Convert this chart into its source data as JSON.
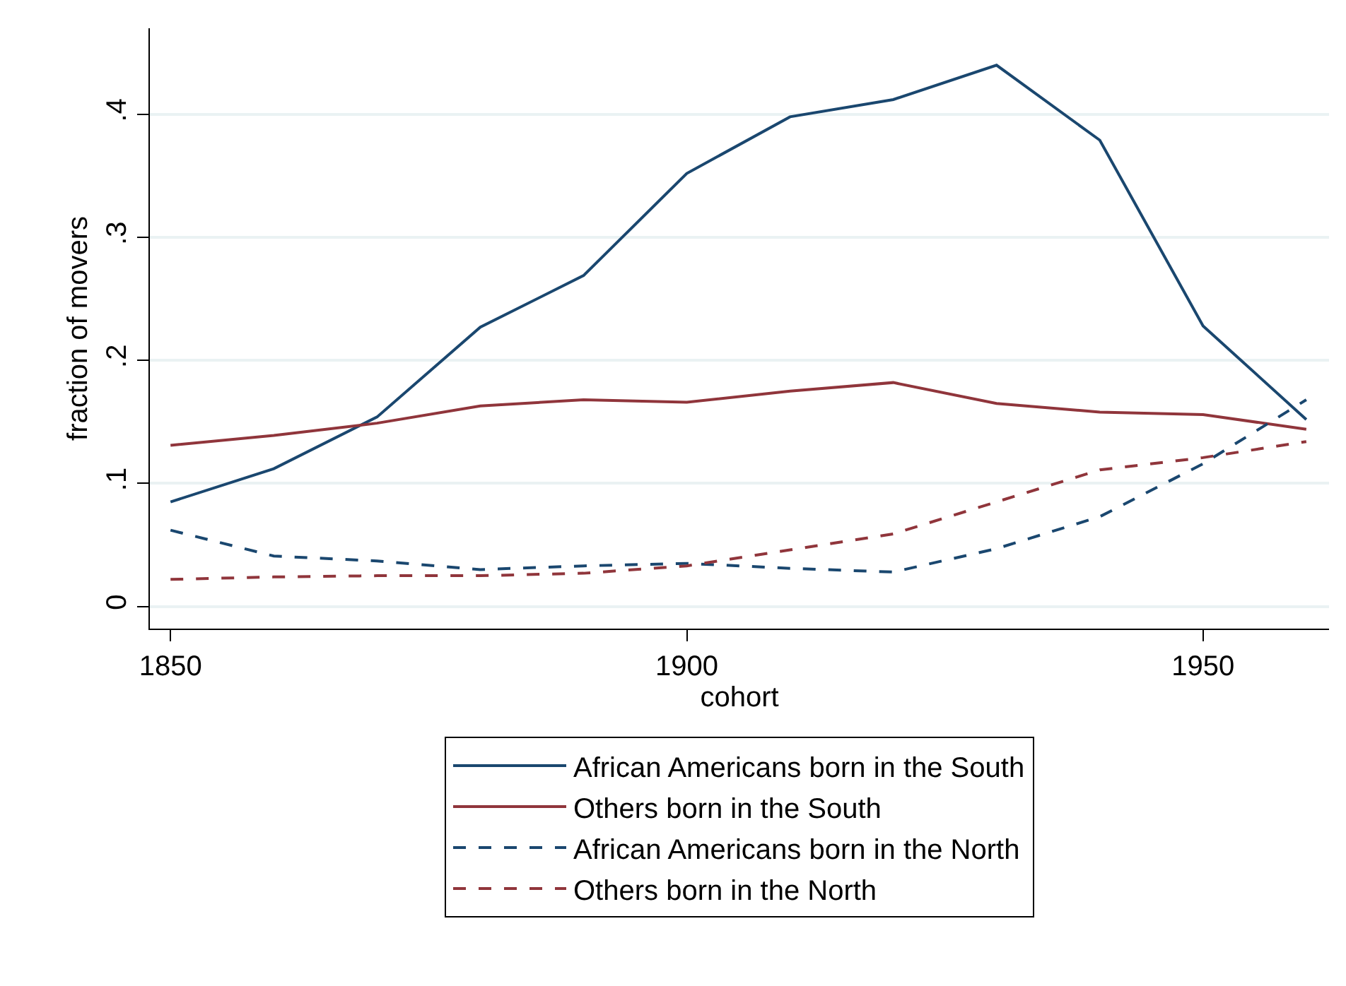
{
  "chart_data": {
    "type": "line",
    "xlabel": "cohort",
    "ylabel": "fraction of movers",
    "x": [
      1850,
      1860,
      1870,
      1880,
      1890,
      1900,
      1910,
      1920,
      1930,
      1940,
      1950,
      1960
    ],
    "series": [
      {
        "name": "African Americans born in the South",
        "color": "#1a476f",
        "line_style": "solid",
        "values": [
          0.085,
          0.112,
          0.154,
          0.227,
          0.269,
          0.352,
          0.398,
          0.412,
          0.44,
          0.379,
          0.228,
          0.152
        ]
      },
      {
        "name": "Others born in the South",
        "color": "#90353b",
        "line_style": "solid",
        "values": [
          0.131,
          0.139,
          0.149,
          0.163,
          0.168,
          0.166,
          0.175,
          0.182,
          0.165,
          0.158,
          0.156,
          0.144
        ]
      },
      {
        "name": "African Americans born in the North",
        "color": "#1a476f",
        "line_style": "dashed",
        "values": [
          0.062,
          0.041,
          0.037,
          0.03,
          0.033,
          0.035,
          0.031,
          0.028,
          0.047,
          0.073,
          0.116,
          0.168
        ]
      },
      {
        "name": "Others born in the North",
        "color": "#90353b",
        "line_style": "dashed",
        "values": [
          0.022,
          0.024,
          0.025,
          0.025,
          0.027,
          0.033,
          0.046,
          0.059,
          0.085,
          0.111,
          0.121,
          0.134
        ]
      }
    ],
    "xlim": [
      1848,
      1962.2
    ],
    "ylim": [
      -0.018,
      0.47
    ],
    "xticks": [
      1850,
      1900,
      1950
    ],
    "yticks": [
      0,
      {
        "value": 0.1,
        "label": ".1"
      },
      {
        "value": 0.2,
        "label": ".2"
      },
      {
        "value": 0.3,
        "label": ".3"
      },
      {
        "value": 0.4,
        "label": ".4"
      }
    ],
    "grid": "y",
    "legend": "bottom",
    "marker": "none"
  }
}
